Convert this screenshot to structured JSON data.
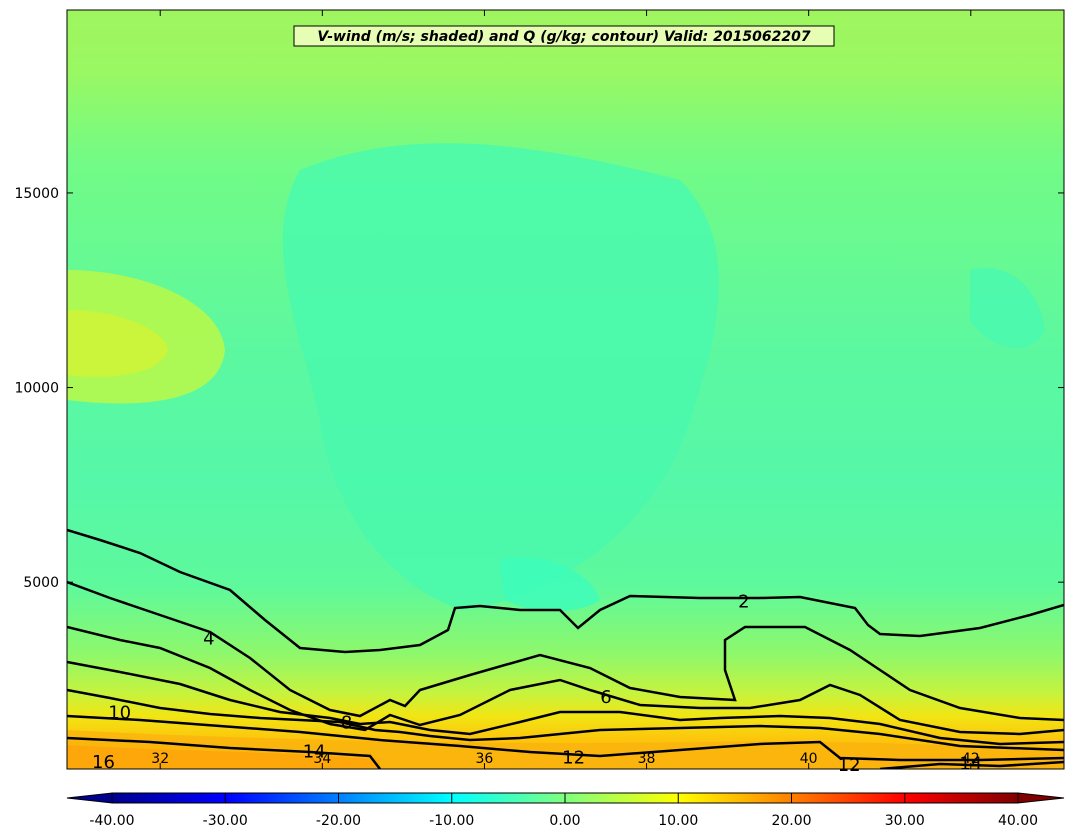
{
  "chart_data": {
    "type": "heatmap",
    "title": "V-wind (m/s; shaded) and Q (g/kg; contour) Valid: 2015062207",
    "xlim": [
      30.85,
      43.15
    ],
    "ylim": [
      200,
      19700
    ],
    "x_ticks": [
      32,
      34,
      36,
      38,
      40,
      42
    ],
    "y_ticks": [
      5000,
      10000,
      15000
    ],
    "grid": false,
    "colorbar": {
      "orientation": "horizontal",
      "placement": "bottom",
      "range": [
        -40,
        40
      ],
      "extend": "both",
      "cmap": "jet",
      "ticks": [
        "-40.00",
        "-30.00",
        "-20.00",
        "-10.00",
        "0.00",
        "10.00",
        "20.00",
        "30.00",
        "40.00"
      ]
    },
    "shaded_field": {
      "variable": "V-wind",
      "units": "m/s",
      "regions": [
        {
          "description": "background upper troposphere",
          "value": 3
        },
        {
          "description": "core over center",
          "value": -5
        },
        {
          "description": "maximum near 11000 m at 31",
          "value": 11
        },
        {
          "description": "near-surface band",
          "value": 14
        }
      ]
    },
    "contours": {
      "variable": "Q",
      "units": "g/kg",
      "labels": [
        {
          "text": "2",
          "x": 39.2,
          "y": 4500
        },
        {
          "text": "4",
          "x": 32.6,
          "y": 3550
        },
        {
          "text": "6",
          "x": 37.5,
          "y": 2050
        },
        {
          "text": "8",
          "x": 34.3,
          "y": 1400
        },
        {
          "text": "10",
          "x": 31.5,
          "y": 1650
        },
        {
          "text": "12",
          "x": 37.1,
          "y": 500
        },
        {
          "text": "12",
          "x": 40.5,
          "y": 300
        },
        {
          "text": "14",
          "x": 33.9,
          "y": 650
        },
        {
          "text": "14",
          "x": 42.0,
          "y": 340
        },
        {
          "text": "16",
          "x": 31.3,
          "y": 380
        }
      ]
    }
  }
}
